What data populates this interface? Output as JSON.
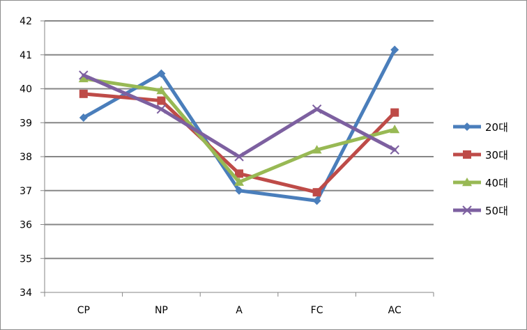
{
  "chart_data": {
    "type": "line",
    "categories": [
      "CP",
      "NP",
      "A",
      "FC",
      "AC"
    ],
    "ylim": [
      34,
      42
    ],
    "yticks": [
      34,
      35,
      36,
      37,
      38,
      39,
      40,
      41,
      42
    ],
    "grid": true,
    "legend_position": "right",
    "series": [
      {
        "name": "20대",
        "color": "#4a7ebb",
        "marker": "diamond",
        "values": [
          39.15,
          40.45,
          37.0,
          36.7,
          41.15
        ]
      },
      {
        "name": "30대",
        "color": "#be4b48",
        "marker": "square",
        "values": [
          39.85,
          39.65,
          37.5,
          36.95,
          39.3
        ]
      },
      {
        "name": "40대",
        "color": "#98b954",
        "marker": "triangle",
        "values": [
          40.3,
          39.95,
          37.25,
          38.2,
          38.8
        ]
      },
      {
        "name": "50대",
        "color": "#7d60a0",
        "marker": "x",
        "values": [
          40.4,
          39.4,
          38.0,
          39.4,
          38.2
        ]
      }
    ]
  }
}
